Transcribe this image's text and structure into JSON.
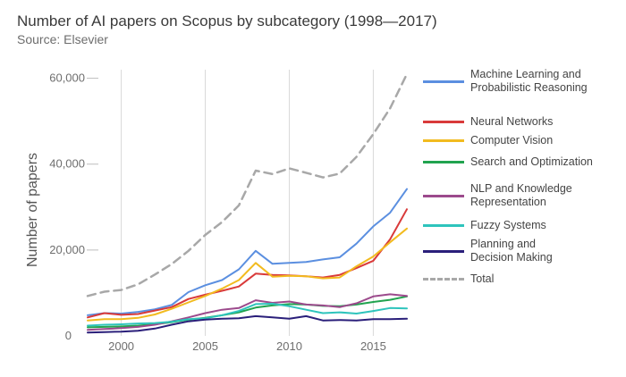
{
  "title": "Number of AI papers on Scopus by subcategory (1998—2017)",
  "subtitle": "Source: Elsevier",
  "chart_data": {
    "type": "line",
    "ylabel": "Number of papers",
    "xlabel": "",
    "xlim": [
      1998,
      2017
    ],
    "ylim": [
      0,
      62000
    ],
    "xticks": [
      2000,
      2005,
      2010,
      2015
    ],
    "xtick_labels": [
      "2000",
      "2005",
      "2010",
      "2015"
    ],
    "yticks": [
      0,
      20000,
      40000,
      60000
    ],
    "ytick_labels": [
      "0",
      "20,000",
      "40,000",
      "60,000"
    ],
    "grid": "vertical",
    "legend_position": "right",
    "x": [
      1998,
      1999,
      2000,
      2001,
      2002,
      2003,
      2004,
      2005,
      2006,
      2007,
      2008,
      2009,
      2010,
      2011,
      2012,
      2013,
      2014,
      2015,
      2016,
      2017
    ],
    "series": [
      {
        "name": "Machine Learning and\nProbabilistic Reasoning",
        "color": "#5b8fe0",
        "dash": false,
        "values": [
          4800,
          5300,
          5200,
          5600,
          6200,
          7200,
          10200,
          11800,
          13000,
          15500,
          19800,
          16800,
          17000,
          17200,
          17800,
          18300,
          21500,
          25500,
          28700,
          34200
        ]
      },
      {
        "name": "Neural Networks",
        "color": "#d93a3a",
        "dash": false,
        "values": [
          4300,
          5300,
          4900,
          5100,
          5900,
          6700,
          8600,
          9600,
          10500,
          11500,
          14500,
          14200,
          14100,
          13900,
          13600,
          14200,
          15800,
          17500,
          22500,
          29500
        ]
      },
      {
        "name": "Computer Vision",
        "color": "#f2bb1f",
        "dash": false,
        "values": [
          3600,
          3900,
          3900,
          4200,
          5000,
          6300,
          7800,
          9300,
          11000,
          13000,
          17000,
          13800,
          14000,
          13900,
          13400,
          13600,
          16200,
          18500,
          21800,
          25000
        ]
      },
      {
        "name": "Search and Optimization",
        "color": "#21a34f",
        "dash": false,
        "values": [
          2000,
          2100,
          2200,
          2400,
          2700,
          3200,
          3800,
          4200,
          4800,
          5500,
          6600,
          7100,
          7400,
          7300,
          7000,
          6900,
          7300,
          7900,
          8400,
          9200
        ]
      },
      {
        "name": "NLP and Knowledge\nRepresentation",
        "color": "#9c4a8c",
        "dash": false,
        "values": [
          1400,
          1600,
          1800,
          2100,
          2600,
          3400,
          4300,
          5300,
          6100,
          6500,
          8300,
          7700,
          8000,
          7300,
          7100,
          6700,
          7600,
          9200,
          9700,
          9300
        ]
      },
      {
        "name": "Fuzzy Systems",
        "color": "#2ec4bc",
        "dash": false,
        "values": [
          2400,
          2600,
          2700,
          2900,
          3000,
          3300,
          3900,
          4100,
          4800,
          5800,
          7400,
          7500,
          6900,
          6100,
          5300,
          5500,
          5200,
          5800,
          6500,
          6400
        ]
      },
      {
        "name": "Planning and\nDecision Making",
        "color": "#2a1f7a",
        "dash": false,
        "values": [
          800,
          900,
          1000,
          1200,
          1700,
          2600,
          3400,
          3800,
          4000,
          4100,
          4600,
          4300,
          4000,
          4600,
          3600,
          3700,
          3600,
          3900,
          3900,
          4000
        ]
      },
      {
        "name": "Total",
        "color": "#a8a8a8",
        "dash": true,
        "values": [
          9300,
          10300,
          10700,
          12000,
          14300,
          16700,
          19800,
          23500,
          26500,
          30400,
          38500,
          37700,
          39000,
          38000,
          36900,
          37800,
          41700,
          47000,
          53000,
          61000
        ]
      }
    ]
  }
}
